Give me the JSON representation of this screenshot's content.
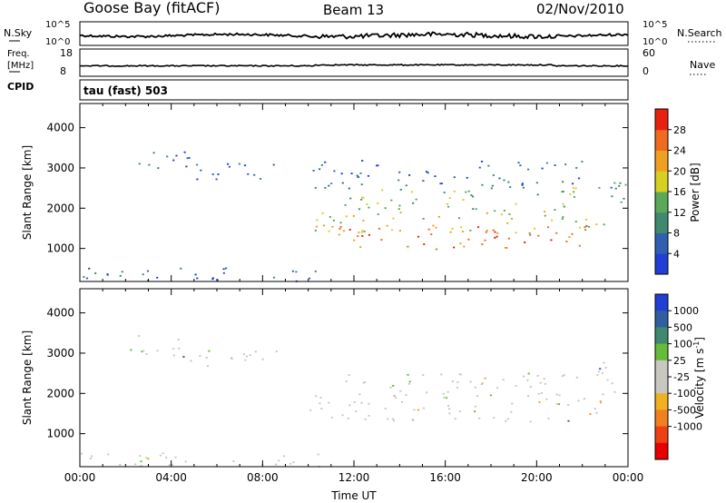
{
  "header": {
    "station": "Goose Bay (fitACF)",
    "beam": "Beam 13",
    "date": "02/Nov/2010"
  },
  "noise_panel": {
    "left_label": "N.Sky",
    "left_ticks": [
      "10^5",
      "10^0"
    ],
    "right_ticks": [
      "10^5",
      "10^0"
    ],
    "right_label": "N.Search"
  },
  "freq_panel": {
    "left_label_1": "Freq.",
    "left_label_2": "[MHz]",
    "left_ticks": [
      "18",
      "8"
    ],
    "right_ticks": [
      "60",
      "0"
    ],
    "right_label": "Nave"
  },
  "cpid_panel": {
    "label": "CPID",
    "text": "tau (fast) 503"
  },
  "colors": {
    "power": [
      "#1f3fd6",
      "#2f5fb0",
      "#3f8a6f",
      "#5aa85a",
      "#d8d020",
      "#f0a020",
      "#f06a20",
      "#e82010"
    ],
    "velocity_scale": [
      "#1f3fd6",
      "#2f5fa0",
      "#3f8a6f",
      "#66bb3a",
      "#c8c8c0",
      "#c8c8c0",
      "#f0b020",
      "#f08020",
      "#ee4010",
      "#e80000"
    ],
    "gray_scatter": "#c8c8c0"
  },
  "chart_data": [
    {
      "type": "heatmap",
      "panel": "power",
      "ylabel": "Slant Range [km]",
      "yticks": [
        "1000",
        "2000",
        "3000",
        "4000"
      ],
      "ylim": [
        180,
        4600
      ],
      "x_unit": "hours UT",
      "xlim": [
        0,
        24
      ],
      "colorbar": {
        "label": "Power [dB]",
        "ticks": [
          "4",
          "8",
          "12",
          "16",
          "20",
          "24",
          "28"
        ],
        "range": [
          0,
          32
        ]
      },
      "echo_regions": [
        {
          "t0": 2.0,
          "t1": 4.8,
          "r0": 2950,
          "r1": 3450,
          "level": 1
        },
        {
          "t0": 4.0,
          "t1": 8.6,
          "r0": 2700,
          "r1": 3150,
          "level": 1
        },
        {
          "t0": 0.0,
          "t1": 10.6,
          "r0": 200,
          "r1": 550,
          "level": 1
        },
        {
          "t0": 10.0,
          "t1": 23.2,
          "r0": 1400,
          "r1": 1950,
          "level": 4
        },
        {
          "t0": 11.0,
          "t1": 22.5,
          "r0": 1000,
          "r1": 1600,
          "level": 6
        },
        {
          "t0": 11.5,
          "t1": 22.0,
          "r0": 1950,
          "r1": 2550,
          "level": 3
        },
        {
          "t0": 10.0,
          "t1": 22.0,
          "r0": 2500,
          "r1": 3200,
          "level": 1
        },
        {
          "t0": 22.5,
          "t1": 24.0,
          "r0": 1900,
          "r1": 2800,
          "level": 2
        }
      ]
    },
    {
      "type": "heatmap",
      "panel": "velocity",
      "ylabel": "Slant Range [km]",
      "yticks": [
        "1000",
        "2000",
        "3000",
        "4000"
      ],
      "ylim": [
        180,
        4600
      ],
      "xlabel": "Time UT",
      "xticks": [
        "00:00",
        "04:00",
        "08:00",
        "12:00",
        "16:00",
        "20:00",
        "00:00"
      ],
      "x_unit": "hours UT",
      "xlim": [
        0,
        24
      ],
      "colorbar": {
        "label": "Velocity [m s",
        "label_sup": "-1",
        "label_end": "]",
        "ticks": [
          "1000",
          "500",
          "100",
          "25",
          "-25",
          "-100",
          "-500",
          "-1000"
        ]
      },
      "echo_regions": [
        {
          "t0": 2.0,
          "t1": 4.8,
          "r0": 2950,
          "r1": 3450,
          "level": 4
        },
        {
          "t0": 4.0,
          "t1": 8.6,
          "r0": 2700,
          "r1": 3150,
          "level": 4
        },
        {
          "t0": 0.0,
          "t1": 10.6,
          "r0": 200,
          "r1": 550,
          "level": 4
        },
        {
          "t0": 10.0,
          "t1": 23.2,
          "r0": 1300,
          "r1": 2000,
          "level": 4
        },
        {
          "t0": 11.5,
          "t1": 22.0,
          "r0": 2000,
          "r1": 2550,
          "level": 4
        },
        {
          "t0": 22.5,
          "t1": 24.0,
          "r0": 1900,
          "r1": 2800,
          "level": 4
        }
      ]
    }
  ]
}
